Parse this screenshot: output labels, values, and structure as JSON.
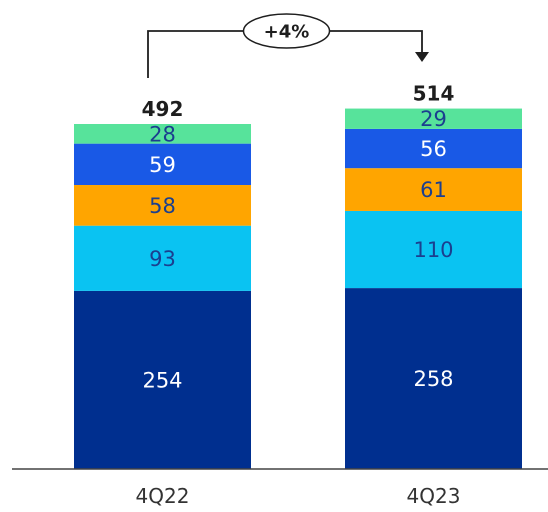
{
  "chart_data": {
    "type": "bar",
    "stacked": true,
    "categories": [
      "4Q22",
      "4Q23"
    ],
    "series": [
      {
        "values": [
          254,
          258
        ],
        "color": "#002f8f",
        "label_color": "#ffffff"
      },
      {
        "values": [
          93,
          110
        ],
        "color": "#0ac3f2",
        "label_color": "#1b3f8f"
      },
      {
        "values": [
          58,
          61
        ],
        "color": "#ffa500",
        "label_color": "#1b3f8f"
      },
      {
        "values": [
          59,
          56
        ],
        "color": "#1959e6",
        "label_color": "#ffffff"
      },
      {
        "values": [
          28,
          29
        ],
        "color": "#57e39b",
        "label_color": "#1b3f8f"
      }
    ],
    "totals": [
      "492",
      "514"
    ],
    "growth_label": "+4%",
    "title": "",
    "xlabel": "",
    "ylabel": "",
    "grid": false,
    "legend": "none"
  }
}
